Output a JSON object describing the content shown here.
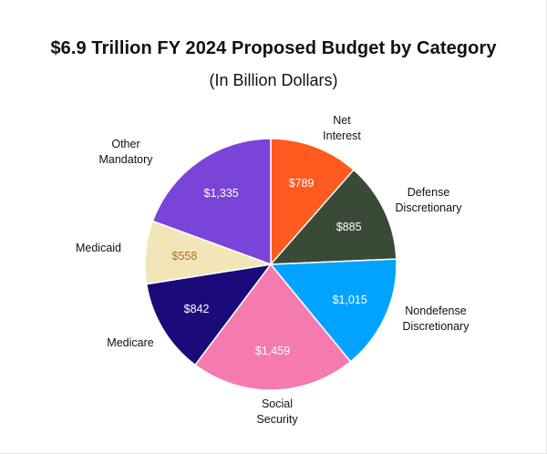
{
  "chart_data": {
    "type": "pie",
    "title": "$6.9 Trillion FY 2024 Proposed Budget by Category",
    "subtitle": "(In Billion Dollars)",
    "slices": [
      {
        "label": [
          "Net",
          "Interest"
        ],
        "value": 789,
        "value_label": "$789",
        "color": "#ff5a1f",
        "label_color": "#ffffff"
      },
      {
        "label": [
          "Defense",
          "Discretionary"
        ],
        "value": 885,
        "value_label": "$885",
        "color": "#394a37",
        "label_color": "#ffffff"
      },
      {
        "label": [
          "Nondefense",
          "Discretionary"
        ],
        "value": 1015,
        "value_label": "$1,015",
        "color": "#00a3ff",
        "label_color": "#ffffff"
      },
      {
        "label": [
          "Social",
          "Security"
        ],
        "value": 1459,
        "value_label": "$1,459",
        "color": "#f57ab0",
        "label_color": "#ffffff"
      },
      {
        "label": [
          "Medicare"
        ],
        "value": 842,
        "value_label": "$842",
        "color": "#1a0a7a",
        "label_color": "#ffffff"
      },
      {
        "label": [
          "Medicaid"
        ],
        "value": 558,
        "value_label": "$558",
        "color": "#f2e6b8",
        "label_color": "#c0662a"
      },
      {
        "label": [
          "Other",
          "Mandatory"
        ],
        "value": 1335,
        "value_label": "$1,335",
        "color": "#7b44d9",
        "label_color": "#ffffff"
      }
    ],
    "start_angle": "12 o'clock",
    "direction": "clockwise"
  }
}
